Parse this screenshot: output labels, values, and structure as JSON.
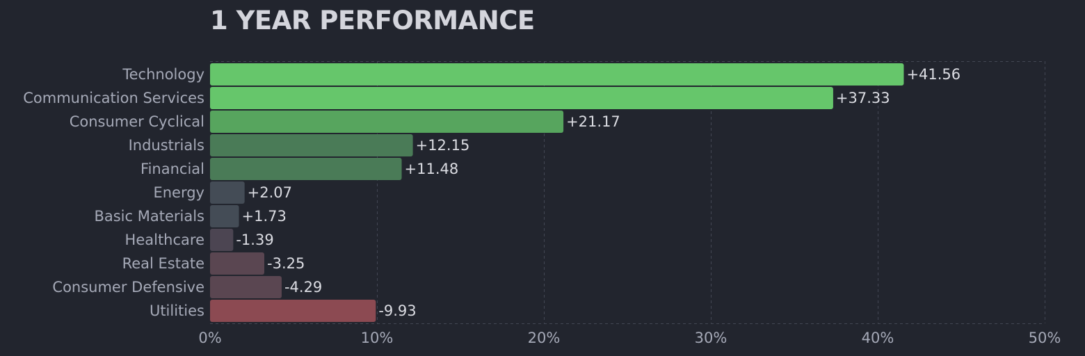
{
  "chart_data": {
    "type": "bar",
    "orientation": "horizontal",
    "title": "1 YEAR PERFORMANCE",
    "categories": [
      "Technology",
      "Communication Services",
      "Consumer Cyclical",
      "Industrials",
      "Financial",
      "Energy",
      "Basic Materials",
      "Healthcare",
      "Real Estate",
      "Consumer Defensive",
      "Utilities"
    ],
    "values": [
      41.56,
      37.33,
      21.17,
      12.15,
      11.48,
      2.07,
      1.73,
      -1.39,
      -3.25,
      -4.29,
      -9.93
    ],
    "value_labels": [
      "+41.56",
      "+37.33",
      "+21.17",
      "+12.15",
      "+11.48",
      "+2.07",
      "+1.73",
      "-1.39",
      "-3.25",
      "-4.29",
      "-9.93"
    ],
    "xlim": [
      0,
      50
    ],
    "x_ticks": [
      0,
      10,
      20,
      30,
      40,
      50
    ],
    "x_tick_labels": [
      "0%",
      "10%",
      "20%",
      "30%",
      "40%",
      "50%"
    ],
    "bar_length": "absolute value",
    "grid": true,
    "legend": "none",
    "colors": {
      "background": "#22252e",
      "strong_positive": "#66c66b",
      "positive": "#57a55e",
      "mild_positive": "#4a7b57",
      "neutral_positive": "#444c56",
      "neutral_negative": "#4c4552",
      "mild_negative": "#5a4651",
      "strong_negative": "#8c4a52"
    }
  }
}
